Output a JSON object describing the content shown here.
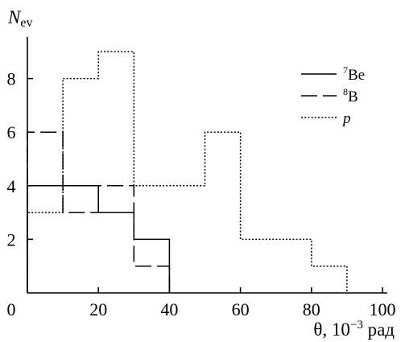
{
  "chart_data": {
    "type": "bar",
    "title": "",
    "ylabel_main": "N",
    "ylabel_sub": "ev",
    "xlabel": "θ, 10",
    "xlabel_exp": "−3",
    "xlabel_unit": " рад",
    "xlim": [
      0,
      100
    ],
    "ylim": [
      0,
      10
    ],
    "xticks": [
      0,
      20,
      40,
      60,
      80,
      100
    ],
    "yticks": [
      2,
      4,
      6,
      8
    ],
    "bin_width": 10,
    "legend_position": "top-right",
    "series": [
      {
        "name_sup": "7",
        "name_main": "Be",
        "style": "solid",
        "bins": [
          {
            "x0": 0,
            "x1": 10,
            "count": 4
          },
          {
            "x0": 10,
            "x1": 20,
            "count": 4
          },
          {
            "x0": 20,
            "x1": 30,
            "count": 3
          },
          {
            "x0": 30,
            "x1": 40,
            "count": 2
          }
        ]
      },
      {
        "name_sup": "8",
        "name_main": "B",
        "style": "dashed",
        "bins": [
          {
            "x0": 0,
            "x1": 10,
            "count": 6
          },
          {
            "x0": 10,
            "x1": 20,
            "count": 3
          },
          {
            "x0": 20,
            "x1": 30,
            "count": 4
          },
          {
            "x0": 30,
            "x1": 40,
            "count": 1
          }
        ]
      },
      {
        "name_sup": "",
        "name_main": "p",
        "style": "dotted",
        "bins": [
          {
            "x0": 0,
            "x1": 10,
            "count": 3
          },
          {
            "x0": 10,
            "x1": 20,
            "count": 8
          },
          {
            "x0": 20,
            "x1": 30,
            "count": 9
          },
          {
            "x0": 30,
            "x1": 40,
            "count": 4
          },
          {
            "x0": 40,
            "x1": 50,
            "count": 4
          },
          {
            "x0": 50,
            "x1": 60,
            "count": 6
          },
          {
            "x0": 60,
            "x1": 70,
            "count": 2
          },
          {
            "x0": 70,
            "x1": 80,
            "count": 2
          },
          {
            "x0": 80,
            "x1": 90,
            "count": 1
          }
        ]
      }
    ]
  }
}
